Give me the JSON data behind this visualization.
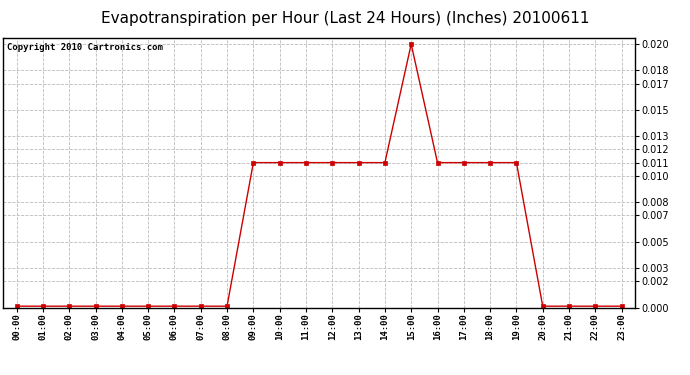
{
  "title": "Evapotranspiration per Hour (Last 24 Hours) (Inches) 20100611",
  "copyright_text": "Copyright 2010 Cartronics.com",
  "hours": [
    "00:00",
    "01:00",
    "02:00",
    "03:00",
    "04:00",
    "05:00",
    "06:00",
    "07:00",
    "08:00",
    "09:00",
    "10:00",
    "11:00",
    "12:00",
    "13:00",
    "14:00",
    "15:00",
    "16:00",
    "17:00",
    "18:00",
    "19:00",
    "20:00",
    "21:00",
    "22:00",
    "23:00"
  ],
  "values": [
    0.0001,
    0.0001,
    0.0001,
    0.0001,
    0.0001,
    0.0001,
    0.0001,
    0.0001,
    0.0001,
    0.011,
    0.011,
    0.011,
    0.011,
    0.011,
    0.011,
    0.02,
    0.011,
    0.011,
    0.011,
    0.011,
    0.0001,
    0.0001,
    0.0001,
    0.0001
  ],
  "line_color": "#cc0000",
  "marker": "s",
  "marker_size": 2.5,
  "marker_color": "#cc0000",
  "background_color": "#ffffff",
  "plot_bg_color": "#ffffff",
  "grid_color": "#bbbbbb",
  "title_fontsize": 11,
  "copyright_fontsize": 6.5,
  "ylim": [
    0,
    0.0205
  ],
  "yticks": [
    0.0,
    0.002,
    0.003,
    0.005,
    0.007,
    0.008,
    0.01,
    0.011,
    0.012,
    0.013,
    0.015,
    0.017,
    0.018,
    0.02
  ]
}
